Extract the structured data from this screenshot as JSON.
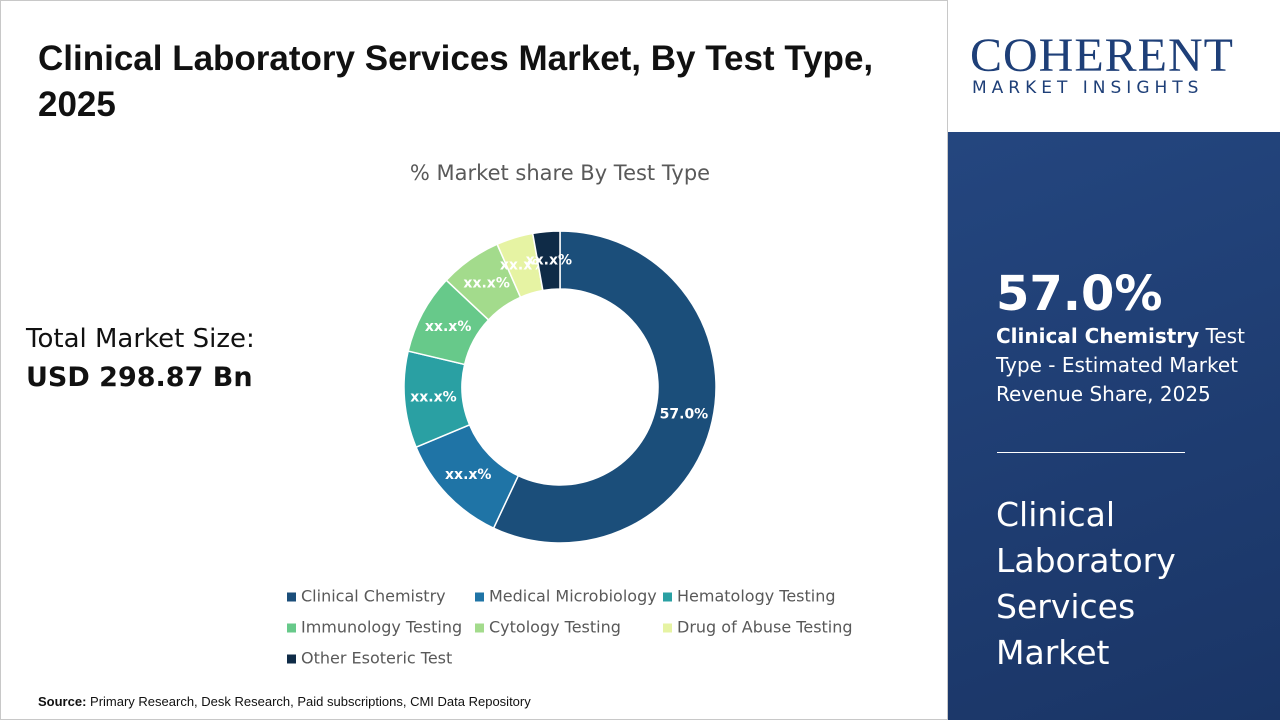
{
  "header": {
    "title": "Clinical Laboratory Services Market, By Test Type, 2025"
  },
  "market_size": {
    "label": "Total Market Size:",
    "value": "USD 298.87 Bn"
  },
  "chart_data": {
    "type": "donut",
    "title": "% Market share By Test Type",
    "categories": [
      "Clinical Chemistry",
      "Medical Microbiology",
      "Hematology Testing",
      "Immunology Testing",
      "Cytology Testing",
      "Drug of Abuse Testing",
      "Other Esoteric Test"
    ],
    "values": [
      57.0,
      11.7,
      10.0,
      8.3,
      6.4,
      3.8,
      2.8
    ],
    "value_labels": [
      "57.0%",
      "xx.x%",
      "xx.x%",
      "xx.x%",
      "xx.x%",
      "xx.x%",
      "xx.x%"
    ],
    "colors": [
      "#1b4e7a",
      "#1f74a6",
      "#2aa0a3",
      "#67c98a",
      "#a3db8c",
      "#e6f3a3",
      "#0f2b47"
    ],
    "legend": "bottom"
  },
  "source": {
    "label": "Source:",
    "text": "Primary Research, Desk Research, Paid subscriptions, CMI Data Repository"
  },
  "logo": {
    "name": "COHERENT",
    "tagline": "MARKET INSIGHTS"
  },
  "panel": {
    "share": "57.0%",
    "highlight": "Clinical Chemistry",
    "description": "Test Type - Estimated Market Revenue Share, 2025",
    "market": "Clinical Laboratory Services Market"
  }
}
